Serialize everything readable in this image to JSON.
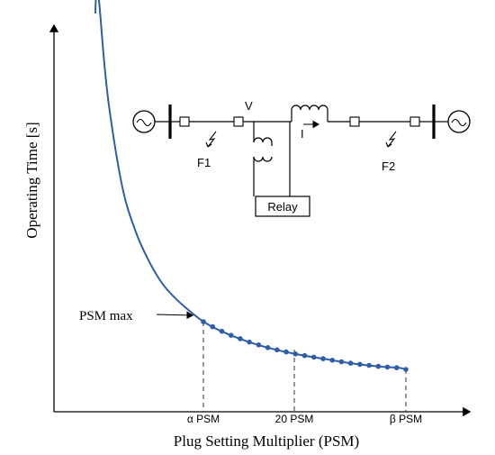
{
  "axes": {
    "ylabel": "Operating Time [s]",
    "xlabel": "Plug Setting Multiplier (PSM)",
    "x_ticks": [
      "α PSM",
      "20 PSM",
      "β PSM"
    ]
  },
  "annotation": {
    "psm_max_label": "PSM max"
  },
  "circuit": {
    "voltage_label": "V",
    "current_label": "I",
    "fault_left": "F1",
    "fault_right": "F2",
    "relay_label": "Relay"
  },
  "chart_data": {
    "type": "line",
    "x_axis_labels": [
      "α PSM",
      "20 PSM",
      "β PSM"
    ],
    "series": [
      {
        "relative_psm": [
          0.2,
          0.25,
          0.3,
          0.4,
          0.5,
          0.6,
          0.7,
          0.8,
          0.9,
          1.0,
          1.1,
          1.2,
          1.35,
          1.5,
          1.7,
          1.9,
          2.1,
          2.3,
          2.45,
          2.5
        ],
        "relative_time": [
          3.3,
          2.65,
          2.2,
          1.65,
          1.35,
          1.15,
          1.0,
          0.9,
          0.82,
          0.75,
          0.7,
          0.66,
          0.61,
          0.57,
          0.53,
          0.5,
          0.47,
          0.45,
          0.44,
          0.43
        ]
      }
    ],
    "marker_psm_range": [
      1.0,
      2.5
    ],
    "colors": {
      "curve": "#2E5EA8",
      "markers": "#2E5EA8"
    }
  }
}
